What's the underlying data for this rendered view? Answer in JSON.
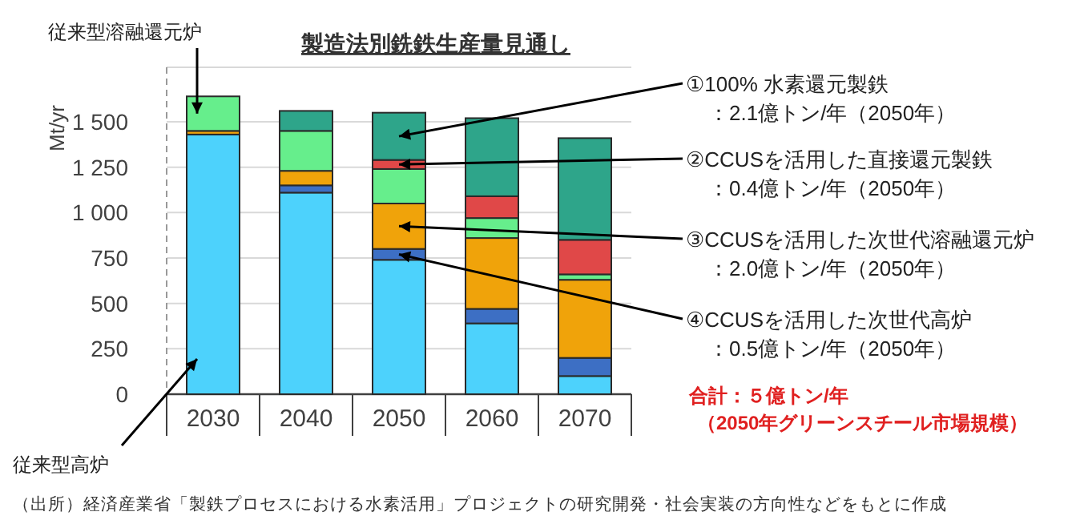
{
  "chart_data": {
    "type": "bar",
    "stacked": true,
    "title": "製造法別銑鉄生産量見通し",
    "ylabel": "Mt/yr",
    "categories": [
      "2030",
      "2040",
      "2050",
      "2060",
      "2070"
    ],
    "series": [
      {
        "name": "従来型高炉",
        "color": "#4dd2fc",
        "values": [
          1430,
          1110,
          740,
          390,
          100
        ]
      },
      {
        "name": "④CCUSを活用した次世代高炉",
        "color": "#3d6fc4",
        "values": [
          0,
          40,
          60,
          80,
          100
        ]
      },
      {
        "name": "③CCUSを活用した次世代溶融還元炉",
        "color": "#f0a30a",
        "values": [
          20,
          80,
          250,
          390,
          430
        ]
      },
      {
        "name": "従来型溶融還元炉",
        "color": "#66ee8c",
        "values": [
          190,
          220,
          190,
          110,
          30
        ]
      },
      {
        "name": "②CCUSを活用した直接還元製鉄",
        "color": "#e04848",
        "values": [
          0,
          0,
          50,
          120,
          190
        ]
      },
      {
        "name": "①100% 水素還元製鉄",
        "color": "#2ea58a",
        "values": [
          0,
          110,
          260,
          430,
          560
        ]
      }
    ],
    "ylim": [
      0,
      1800
    ],
    "yticks": [
      0,
      250,
      500,
      750,
      {
        "value": 1000,
        "label": "1 000"
      },
      {
        "value": 1250,
        "label": "1 250"
      },
      {
        "value": 1500,
        "label": "1 500"
      }
    ],
    "grid": "y",
    "annotations": [
      "：2.1億トン/年（2050年）",
      "：0.4億トン/年（2050年）",
      "：2.0億トン/年（2050年）",
      "：0.5億トン/年（2050年）",
      "合計：５億トン/年",
      "（2050年グリーンスチール市場規模）",
      "（出所）経済産業省「製鉄プロセスにおける水素活用」プロジェクトの研究開発・社会実装の方向性などをもとに作成"
    ]
  }
}
